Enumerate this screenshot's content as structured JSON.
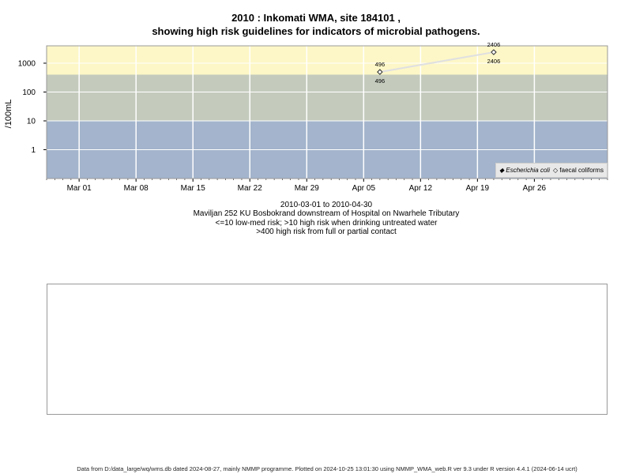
{
  "title_line1": "2010 : Inkomati WMA, site 184101 ,",
  "title_line2": "showing high risk guidelines for indicators of microbial pathogens.",
  "caption": {
    "date_range": "2010-03-01 to 2010-04-30",
    "site_desc": "Maviljan 252 KU Bosbokrand downstream of Hospital on Nwarhele Tributary",
    "guideline1": "<=10 low-med risk; >10 high risk when drinking untreated water",
    "guideline2": ">400 high risk from full or partial contact"
  },
  "footer": "Data from D:/data_large/wq/wms.db dated 2024-08-27, mainly NMMP programme. Plotted on 2024-10-25 13:01:30 using NMMP_WMA_web.R ver 9.3 under R version 4.4.1 (2024-06-14 ucrt)",
  "legend": {
    "ecoli_label": "Escherichia coli",
    "ecoli_marker": "◆",
    "fc_label": "faecal coliforms",
    "fc_marker": "◇"
  },
  "colors": {
    "low_zone": "#a3b4cc",
    "mid_zone": "#c4cbbd",
    "high_zone": "#fdf7c7",
    "grid": "#ffffff",
    "line": "#e0e0e0",
    "point": "#333333"
  },
  "chart_data": {
    "type": "line",
    "title": "2010 : Inkomati WMA, site 184101 , showing high risk guidelines for indicators of microbial pathogens.",
    "ylabel": "/100mL",
    "xlabel": "",
    "y_scale": "log",
    "x_range": [
      "2010-02-25",
      "2010-05-05"
    ],
    "y_ticks": [
      1,
      10,
      100,
      1000
    ],
    "y_tick_labels": [
      "1",
      "10",
      "100",
      "1000"
    ],
    "x_ticks": [
      "2010-03-01",
      "2010-03-08",
      "2010-03-15",
      "2010-03-22",
      "2010-03-29",
      "2010-04-05",
      "2010-04-12",
      "2010-04-19",
      "2010-04-26"
    ],
    "x_tick_labels": [
      "Mar 01",
      "Mar 08",
      "Mar 15",
      "Mar 22",
      "Mar 29",
      "Apr 05",
      "Apr 12",
      "Apr 19",
      "Apr 26"
    ],
    "guideline_bands": [
      {
        "from": 0.1,
        "to": 10,
        "color": "#a3b4cc"
      },
      {
        "from": 10,
        "to": 400,
        "color": "#c4cbbd"
      },
      {
        "from": 400,
        "to": 4000,
        "color": "#fdf7c7"
      }
    ],
    "grid": true,
    "legend_position": "bottom-right",
    "series": [
      {
        "name": "Escherichia coli",
        "marker": "filled-diamond",
        "x": [
          "2010-04-07",
          "2010-04-21"
        ],
        "y": [
          496,
          2406
        ],
        "labels_above": [
          "496",
          "2406"
        ]
      },
      {
        "name": "faecal coliforms",
        "marker": "open-diamond",
        "x": [
          "2010-04-07",
          "2010-04-21"
        ],
        "y": [
          496,
          2406
        ],
        "labels_below": [
          "496",
          "2406"
        ]
      }
    ]
  }
}
